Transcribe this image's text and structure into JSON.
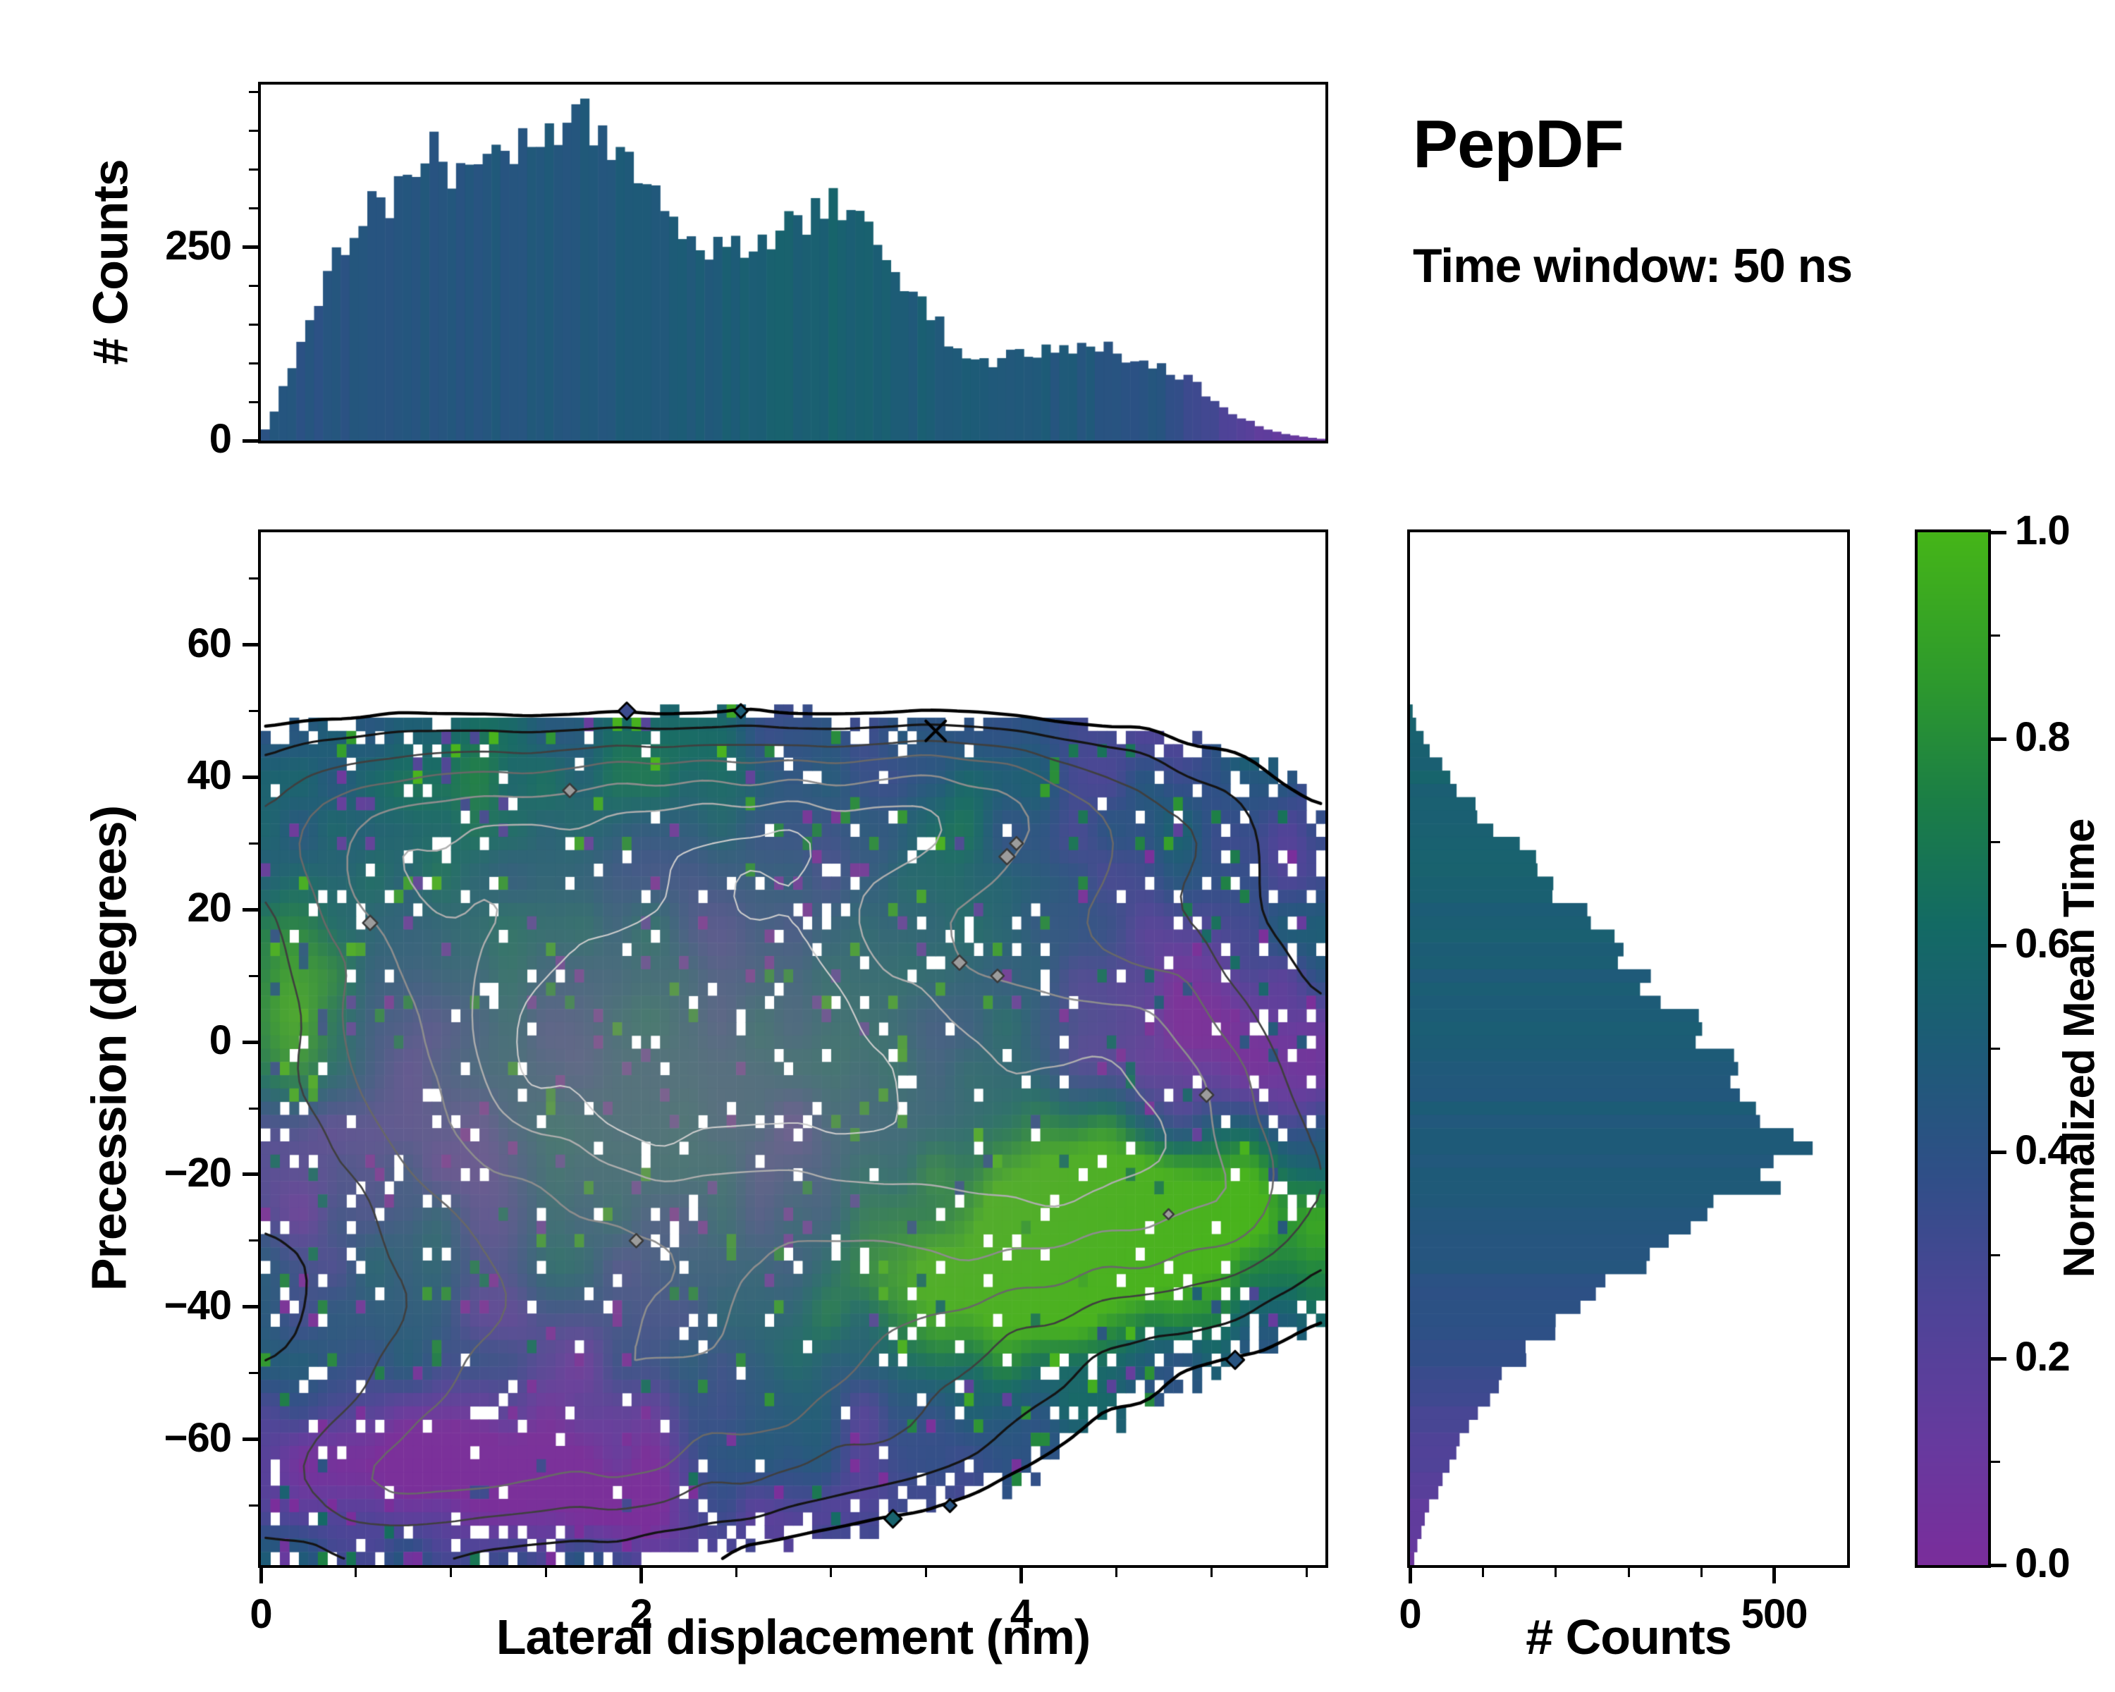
{
  "header": {
    "title": "PepDF",
    "subtitle": "Time window: 50 ns"
  },
  "colors": {
    "background": "#ffffff",
    "axis": "#000000",
    "colormap": [
      [
        0.0,
        "#7a2d9b"
      ],
      [
        0.12,
        "#663a9e"
      ],
      [
        0.25,
        "#4d4497"
      ],
      [
        0.38,
        "#2f4f87"
      ],
      [
        0.5,
        "#1d5b77"
      ],
      [
        0.62,
        "#136a64"
      ],
      [
        0.74,
        "#1b7e46"
      ],
      [
        0.86,
        "#2e9a2c"
      ],
      [
        1.0,
        "#45b518"
      ]
    ]
  },
  "chart_data": {
    "type": "heatmap",
    "title": "PepDF",
    "subtitle": "Time window: 50 ns",
    "main": {
      "xlabel": "Lateral displacement (nm)",
      "ylabel": "Precession (degrees)",
      "xlim": [
        0,
        5.6
      ],
      "ylim": [
        -79,
        77
      ],
      "xticks": [
        0,
        2,
        4
      ],
      "xminors": [
        0.5,
        1,
        1.5,
        2.5,
        3,
        3.5,
        4.5,
        5,
        5.5
      ],
      "yticks": [
        -60,
        -40,
        -20,
        0,
        20,
        40,
        60
      ],
      "yminors": [
        -70,
        -50,
        -30,
        -10,
        10,
        30,
        50,
        70
      ],
      "nx": 112,
      "ny": 78,
      "density_blobs": [
        [
          1.4,
          -5,
          1.3,
          30,
          1.0
        ],
        [
          2.9,
          8,
          1.2,
          26,
          0.95
        ],
        [
          2.2,
          35,
          1.8,
          9,
          0.5
        ],
        [
          0.6,
          28,
          0.55,
          13,
          0.4
        ],
        [
          4.3,
          -25,
          0.95,
          16,
          0.8
        ],
        [
          4.8,
          2,
          0.7,
          16,
          0.62
        ],
        [
          1.1,
          -58,
          1.0,
          12,
          0.55
        ],
        [
          2.6,
          -46,
          1.0,
          12,
          0.5
        ],
        [
          0.4,
          -70,
          0.65,
          8,
          0.38
        ],
        [
          1.9,
          -68,
          0.85,
          7,
          0.32
        ],
        [
          3.3,
          -60,
          0.7,
          8,
          0.3
        ],
        [
          5.25,
          -25,
          0.45,
          10,
          0.3
        ],
        [
          4.4,
          32,
          0.8,
          8,
          0.35
        ],
        [
          3.8,
          42,
          0.5,
          6,
          0.25
        ]
      ],
      "value_regions": [
        [
          4.3,
          -30,
          0.8,
          12,
          0.55
        ],
        [
          3.7,
          -38,
          0.6,
          8,
          0.4
        ],
        [
          4.9,
          -22,
          0.5,
          8,
          0.35
        ],
        [
          4.95,
          3,
          0.55,
          13,
          -0.45
        ],
        [
          5.35,
          -8,
          0.3,
          8,
          -0.3
        ],
        [
          0.85,
          -66,
          0.9,
          9,
          -0.28
        ],
        [
          2.0,
          -72,
          0.9,
          6,
          -0.22
        ],
        [
          1.6,
          -48,
          1.2,
          14,
          -0.15
        ],
        [
          0.12,
          4,
          0.18,
          12,
          0.45
        ],
        [
          0.18,
          -22,
          0.22,
          10,
          -0.3
        ],
        [
          2.3,
          37,
          1.6,
          7,
          0.1
        ],
        [
          3.0,
          -15,
          0.9,
          12,
          -0.05
        ]
      ],
      "gray_core": {
        "x": 2.1,
        "y": -8,
        "sx": 1.5,
        "sy": 26,
        "max": 0.5
      },
      "contours": [
        [
          0.17,
          "#000000",
          4.5
        ],
        [
          0.3,
          "#141414",
          3.2
        ],
        [
          0.46,
          "#3f3f3f",
          2.6
        ],
        [
          0.58,
          "#686868",
          2.6
        ],
        [
          0.7,
          "#8d8d8d",
          2.6
        ],
        [
          0.8,
          "#aeaeae",
          2.4
        ],
        [
          0.88,
          "#cccccc",
          2.1
        ]
      ],
      "cross_marker": [
        3.55,
        47
      ]
    },
    "top_hist": {
      "ylabel": "# Counts",
      "ylim": [
        0,
        460
      ],
      "yticks": [
        0,
        250
      ],
      "yminors": [
        50,
        100,
        150,
        200,
        300,
        350,
        400,
        450
      ],
      "bins": 120,
      "profile": [
        [
          0,
          4
        ],
        [
          0.08,
          40
        ],
        [
          0.15,
          95
        ],
        [
          0.22,
          140
        ],
        [
          0.3,
          185
        ],
        [
          0.36,
          250
        ],
        [
          0.45,
          258
        ],
        [
          0.55,
          300
        ],
        [
          0.62,
          295
        ],
        [
          0.7,
          322
        ],
        [
          0.8,
          335
        ],
        [
          0.9,
          382
        ],
        [
          1.0,
          360
        ],
        [
          1.1,
          378
        ],
        [
          1.2,
          366
        ],
        [
          1.3,
          394
        ],
        [
          1.4,
          376
        ],
        [
          1.5,
          398
        ],
        [
          1.6,
          428
        ],
        [
          1.7,
          420
        ],
        [
          1.8,
          398
        ],
        [
          1.9,
          382
        ],
        [
          2.0,
          352
        ],
        [
          2.1,
          316
        ],
        [
          2.2,
          286
        ],
        [
          2.3,
          258
        ],
        [
          2.4,
          247
        ],
        [
          2.5,
          252
        ],
        [
          2.6,
          255
        ],
        [
          2.7,
          258
        ],
        [
          2.8,
          276
        ],
        [
          2.9,
          298
        ],
        [
          3.0,
          310
        ],
        [
          3.1,
          300
        ],
        [
          3.15,
          308
        ],
        [
          3.25,
          272
        ],
        [
          3.35,
          225
        ],
        [
          3.45,
          184
        ],
        [
          3.55,
          158
        ],
        [
          3.65,
          120
        ],
        [
          3.75,
          95
        ],
        [
          3.85,
          102
        ],
        [
          3.95,
          112
        ],
        [
          4.05,
          116
        ],
        [
          4.15,
          121
        ],
        [
          4.25,
          112
        ],
        [
          4.35,
          117
        ],
        [
          4.45,
          127
        ],
        [
          4.55,
          112
        ],
        [
          4.65,
          100
        ],
        [
          4.75,
          92
        ],
        [
          4.85,
          82
        ],
        [
          4.95,
          66
        ],
        [
          5.05,
          47
        ],
        [
          5.15,
          30
        ],
        [
          5.25,
          18
        ],
        [
          5.35,
          10
        ],
        [
          5.45,
          6
        ],
        [
          5.6,
          2
        ]
      ],
      "color_profile": [
        [
          0,
          0.42
        ],
        [
          1.5,
          0.46
        ],
        [
          2.4,
          0.5
        ],
        [
          3.0,
          0.55
        ],
        [
          3.5,
          0.5
        ],
        [
          4.2,
          0.47
        ],
        [
          4.7,
          0.42
        ],
        [
          5.0,
          0.3
        ],
        [
          5.25,
          0.18
        ],
        [
          5.6,
          0.08
        ]
      ]
    },
    "right_hist": {
      "xlabel": "# Counts",
      "xlim": [
        0,
        600
      ],
      "xticks": [
        0,
        500
      ],
      "xminors": [
        100,
        200,
        300,
        400
      ],
      "bins": 78,
      "profile": [
        [
          77,
          0
        ],
        [
          52,
          0
        ],
        [
          48,
          8
        ],
        [
          45,
          22
        ],
        [
          42,
          42
        ],
        [
          40,
          58
        ],
        [
          37,
          74
        ],
        [
          35,
          92
        ],
        [
          32,
          112
        ],
        [
          30,
          150
        ],
        [
          28,
          168
        ],
        [
          25,
          186
        ],
        [
          22,
          202
        ],
        [
          20,
          232
        ],
        [
          17,
          252
        ],
        [
          15,
          272
        ],
        [
          12,
          292
        ],
        [
          10,
          312
        ],
        [
          7,
          332
        ],
        [
          5,
          352
        ],
        [
          2,
          382
        ],
        [
          0,
          402
        ],
        [
          -2,
          422
        ],
        [
          -5,
          452
        ],
        [
          -8,
          462
        ],
        [
          -10,
          472
        ],
        [
          -12,
          482
        ],
        [
          -15,
          502
        ],
        [
          -17,
          522
        ],
        [
          -19,
          492
        ],
        [
          -21,
          502
        ],
        [
          -23,
          462
        ],
        [
          -25,
          432
        ],
        [
          -27,
          412
        ],
        [
          -30,
          382
        ],
        [
          -32,
          352
        ],
        [
          -35,
          312
        ],
        [
          -37,
          282
        ],
        [
          -40,
          252
        ],
        [
          -42,
          222
        ],
        [
          -45,
          187
        ],
        [
          -47,
          162
        ],
        [
          -50,
          137
        ],
        [
          -52,
          117
        ],
        [
          -55,
          101
        ],
        [
          -57,
          86
        ],
        [
          -60,
          71
        ],
        [
          -63,
          56
        ],
        [
          -65,
          46
        ],
        [
          -68,
          36
        ],
        [
          -70,
          28
        ],
        [
          -73,
          18
        ],
        [
          -75,
          12
        ],
        [
          -77,
          8
        ],
        [
          -79,
          4
        ]
      ],
      "color_profile": [
        [
          77,
          0.56
        ],
        [
          40,
          0.55
        ],
        [
          20,
          0.52
        ],
        [
          0,
          0.5
        ],
        [
          -20,
          0.47
        ],
        [
          -35,
          0.43
        ],
        [
          -45,
          0.38
        ],
        [
          -55,
          0.3
        ],
        [
          -62,
          0.24
        ],
        [
          -70,
          0.16
        ],
        [
          -79,
          0.1
        ]
      ]
    },
    "colorbar": {
      "label": "Normalized Mean Time",
      "lim": [
        0,
        1
      ],
      "ticks": [
        0.0,
        0.2,
        0.4,
        0.6,
        0.8,
        1.0
      ],
      "minors": [
        0.1,
        0.3,
        0.5,
        0.7,
        0.9
      ]
    }
  }
}
